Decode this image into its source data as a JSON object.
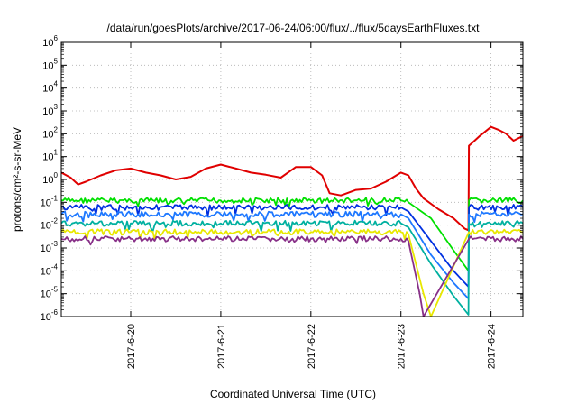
{
  "chart_data": {
    "type": "line",
    "title": "/data/run/goesPlots/archive/2017-06-24/06:00/flux/../flux/5daysEarthFluxes.txt",
    "xlabel": "Coordinated Universal Time (UTC)",
    "ylabel": "protons/cm²-s-sr-MeV",
    "x_range": [
      "2017-06-19 05:30",
      "2017-06-24 08:30"
    ],
    "y_scale": "log",
    "y_range": [
      1e-06,
      1000000.0
    ],
    "grid": true,
    "legend": "none",
    "x_ticks": [
      {
        "value": "2017-06-20 00:00",
        "label": "2017-6-20"
      },
      {
        "value": "2017-06-21 00:00",
        "label": "2017-6-21"
      },
      {
        "value": "2017-06-22 00:00",
        "label": "2017-6-22"
      },
      {
        "value": "2017-06-23 00:00",
        "label": "2017-6-23"
      },
      {
        "value": "2017-06-24 00:00",
        "label": "2017-6-24"
      }
    ],
    "y_ticks": [
      {
        "value": 1e-06,
        "base": "10",
        "exp": "-6"
      },
      {
        "value": 1e-05,
        "base": "10",
        "exp": "-5"
      },
      {
        "value": 0.0001,
        "base": "10",
        "exp": "-4"
      },
      {
        "value": 0.001,
        "base": "10",
        "exp": "-3"
      },
      {
        "value": 0.01,
        "base": "10",
        "exp": "-2"
      },
      {
        "value": 0.1,
        "base": "10",
        "exp": "-1"
      },
      {
        "value": 1,
        "base": "10",
        "exp": "0"
      },
      {
        "value": 10,
        "base": "10",
        "exp": "1"
      },
      {
        "value": 100,
        "base": "10",
        "exp": "2"
      },
      {
        "value": 1000,
        "base": "10",
        "exp": "3"
      },
      {
        "value": 10000,
        "base": "10",
        "exp": "4"
      },
      {
        "value": 100000,
        "base": "10",
        "exp": "5"
      },
      {
        "value": 1000000,
        "base": "10",
        "exp": "6"
      }
    ],
    "series": [
      {
        "color": "#e00000",
        "points": [
          [
            "2017-06-19 05:30",
            2.0
          ],
          [
            "2017-06-19 08:00",
            1.2
          ],
          [
            "2017-06-19 10:00",
            0.6
          ],
          [
            "2017-06-19 12:00",
            0.8
          ],
          [
            "2017-06-19 16:00",
            1.5
          ],
          [
            "2017-06-19 20:00",
            2.5
          ],
          [
            "2017-06-20 00:00",
            3.0
          ],
          [
            "2017-06-20 04:00",
            2.0
          ],
          [
            "2017-06-20 08:00",
            1.5
          ],
          [
            "2017-06-20 12:00",
            1.0
          ],
          [
            "2017-06-20 16:00",
            1.3
          ],
          [
            "2017-06-20 20:00",
            3.0
          ],
          [
            "2017-06-21 00:00",
            4.5
          ],
          [
            "2017-06-21 04:00",
            3.0
          ],
          [
            "2017-06-21 08:00",
            2.0
          ],
          [
            "2017-06-21 12:00",
            1.6
          ],
          [
            "2017-06-21 16:00",
            1.2
          ],
          [
            "2017-06-21 20:00",
            3.5
          ],
          [
            "2017-06-22 00:00",
            3.5
          ],
          [
            "2017-06-22 03:00",
            1.5
          ],
          [
            "2017-06-22 05:00",
            0.25
          ],
          [
            "2017-06-22 08:00",
            0.2
          ],
          [
            "2017-06-22 12:00",
            0.35
          ],
          [
            "2017-06-22 16:00",
            0.4
          ],
          [
            "2017-06-22 20:00",
            0.8
          ],
          [
            "2017-06-23 00:00",
            2.0
          ],
          [
            "2017-06-23 02:00",
            1.5
          ],
          [
            "2017-06-23 04:00",
            0.4
          ],
          [
            "2017-06-23 06:00",
            0.15
          ],
          [
            "2017-06-23 10:00",
            0.05
          ],
          [
            "2017-06-23 14:00",
            0.02
          ],
          [
            "2017-06-23 17:00",
            0.007
          ],
          [
            "2017-06-23 18:00",
            0.006
          ],
          [
            "2017-06-23 18:06",
            30
          ],
          [
            "2017-06-23 19:00",
            40
          ],
          [
            "2017-06-23 21:00",
            80
          ],
          [
            "2017-06-24 00:00",
            200
          ],
          [
            "2017-06-24 02:00",
            150
          ],
          [
            "2017-06-24 04:00",
            100
          ],
          [
            "2017-06-24 06:00",
            50
          ],
          [
            "2017-06-24 08:30",
            80
          ]
        ]
      },
      {
        "color": "#00e000",
        "points": [
          [
            "2017-06-19 05:30",
            0.12
          ],
          [
            "2017-06-20 00:00",
            0.12
          ],
          [
            "2017-06-21 00:00",
            0.12
          ],
          [
            "2017-06-22 00:00",
            0.12
          ],
          [
            "2017-06-23 00:00",
            0.12
          ],
          [
            "2017-06-23 02:00",
            0.1
          ],
          [
            "2017-06-23 08:00",
            0.02
          ],
          [
            "2017-06-23 14:00",
            0.0008
          ],
          [
            "2017-06-23 18:00",
            0.0001
          ],
          [
            "2017-06-23 18:06",
            0.12
          ],
          [
            "2017-06-24 08:30",
            0.12
          ]
        ]
      },
      {
        "color": "#0030e0",
        "points": [
          [
            "2017-06-19 05:30",
            0.06
          ],
          [
            "2017-06-20 00:00",
            0.06
          ],
          [
            "2017-06-21 00:00",
            0.06
          ],
          [
            "2017-06-22 00:00",
            0.06
          ],
          [
            "2017-06-23 00:00",
            0.06
          ],
          [
            "2017-06-23 02:00",
            0.04
          ],
          [
            "2017-06-23 08:00",
            0.002
          ],
          [
            "2017-06-23 14:00",
            0.0001
          ],
          [
            "2017-06-23 18:00",
            2e-05
          ],
          [
            "2017-06-23 18:06",
            0.06
          ],
          [
            "2017-06-24 08:30",
            0.06
          ]
        ]
      },
      {
        "color": "#1e78ff",
        "points": [
          [
            "2017-06-19 05:30",
            0.03
          ],
          [
            "2017-06-20 00:00",
            0.03
          ],
          [
            "2017-06-21 00:00",
            0.03
          ],
          [
            "2017-06-22 00:00",
            0.03
          ],
          [
            "2017-06-23 00:00",
            0.03
          ],
          [
            "2017-06-23 02:00",
            0.02
          ],
          [
            "2017-06-23 08:00",
            0.0005
          ],
          [
            "2017-06-23 14:00",
            3e-05
          ],
          [
            "2017-06-23 18:00",
            6e-06
          ],
          [
            "2017-06-23 18:06",
            0.03
          ],
          [
            "2017-06-24 08:30",
            0.03
          ]
        ]
      },
      {
        "color": "#00b0a0",
        "points": [
          [
            "2017-06-19 05:30",
            0.012
          ],
          [
            "2017-06-20 00:00",
            0.012
          ],
          [
            "2017-06-21 00:00",
            0.012
          ],
          [
            "2017-06-22 00:00",
            0.012
          ],
          [
            "2017-06-23 00:00",
            0.012
          ],
          [
            "2017-06-23 02:00",
            0.008
          ],
          [
            "2017-06-23 08:00",
            0.0002
          ],
          [
            "2017-06-23 14:00",
            8e-06
          ],
          [
            "2017-06-23 18:00",
            1.2e-06
          ],
          [
            "2017-06-23 18:06",
            0.012
          ],
          [
            "2017-06-24 08:30",
            0.012
          ]
        ]
      },
      {
        "color": "#e8e800",
        "points": [
          [
            "2017-06-19 05:30",
            0.005
          ],
          [
            "2017-06-20 00:00",
            0.005
          ],
          [
            "2017-06-21 00:00",
            0.005
          ],
          [
            "2017-06-22 00:00",
            0.005
          ],
          [
            "2017-06-23 00:00",
            0.005
          ],
          [
            "2017-06-23 02:00",
            0.004
          ],
          [
            "2017-06-23 06:00",
            1e-05
          ],
          [
            "2017-06-23 08:00",
            1e-06
          ],
          [
            "2017-06-23 18:06",
            0.005
          ],
          [
            "2017-06-24 08:30",
            0.005
          ]
        ]
      },
      {
        "color": "#883088",
        "points": [
          [
            "2017-06-19 05:30",
            0.0025
          ],
          [
            "2017-06-20 00:00",
            0.0025
          ],
          [
            "2017-06-21 00:00",
            0.0025
          ],
          [
            "2017-06-22 00:00",
            0.0025
          ],
          [
            "2017-06-23 00:00",
            0.0025
          ],
          [
            "2017-06-23 02:00",
            0.002
          ],
          [
            "2017-06-23 05:00",
            1e-05
          ],
          [
            "2017-06-23 06:00",
            1e-06
          ],
          [
            "2017-06-23 18:06",
            0.0025
          ],
          [
            "2017-06-24 08:30",
            0.0025
          ]
        ]
      }
    ]
  }
}
